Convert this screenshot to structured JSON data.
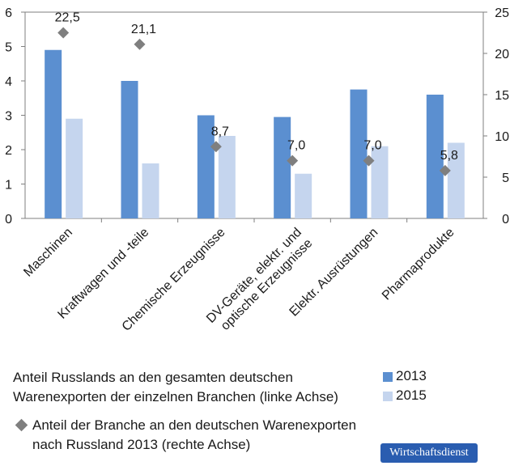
{
  "chart_data": {
    "type": "bar",
    "categories": [
      [
        "Maschinen"
      ],
      [
        "Kraftwagen und -teile"
      ],
      [
        "Chemische Erzeugnisse"
      ],
      [
        "DV-Geräte, elektr. und",
        "optische Erzeugnisse"
      ],
      [
        "Elektr. Ausrüstungen"
      ],
      [
        "Pharmaprodukte"
      ]
    ],
    "series": [
      {
        "name": "2013",
        "axis": "left",
        "color": "#5b8fd0",
        "values": [
          4.9,
          4.0,
          3.0,
          2.95,
          3.75,
          3.6
        ]
      },
      {
        "name": "2015",
        "axis": "left",
        "color": "#c5d5ee",
        "values": [
          2.9,
          1.6,
          2.4,
          1.3,
          2.1,
          2.2
        ]
      },
      {
        "name": "Anteil der Branche an den deutschen Warenexporten nach Russland 2013 (rechte Achse)",
        "axis": "right",
        "type": "scatter",
        "marker": "diamond",
        "color": "#7f7f7f",
        "values": [
          22.5,
          21.1,
          8.7,
          7.0,
          7.0,
          5.8
        ],
        "labels": [
          "22,5",
          "21,1",
          "8,7",
          "7,0",
          "7,0",
          "5,8"
        ]
      }
    ],
    "y_left": {
      "min": 0,
      "max": 6,
      "ticks": [
        "0",
        "1",
        "2",
        "3",
        "4",
        "5",
        "6"
      ]
    },
    "y_right": {
      "min": 0,
      "max": 25,
      "ticks": [
        "0",
        "5",
        "10",
        "15",
        "20",
        "25"
      ]
    }
  },
  "legend": {
    "bars_text_line1": "Anteil Russlands an den gesamten deutschen",
    "bars_text_line2": "Warenexporten der einzelnen Branchen (linke Achse)",
    "label_2013": "2013",
    "label_2015": "2015",
    "diamond_text_line1": "Anteil der Branche an den deutschen Warenexporten",
    "diamond_text_line2": "nach Russland 2013 (rechte Achse)"
  },
  "brand": {
    "label": "Wirtschaftsdienst"
  },
  "colors": {
    "bar2013": "#5b8fd0",
    "bar2015": "#c5d5ee",
    "marker": "#7f7f7f",
    "brand": "#2a5db0"
  }
}
